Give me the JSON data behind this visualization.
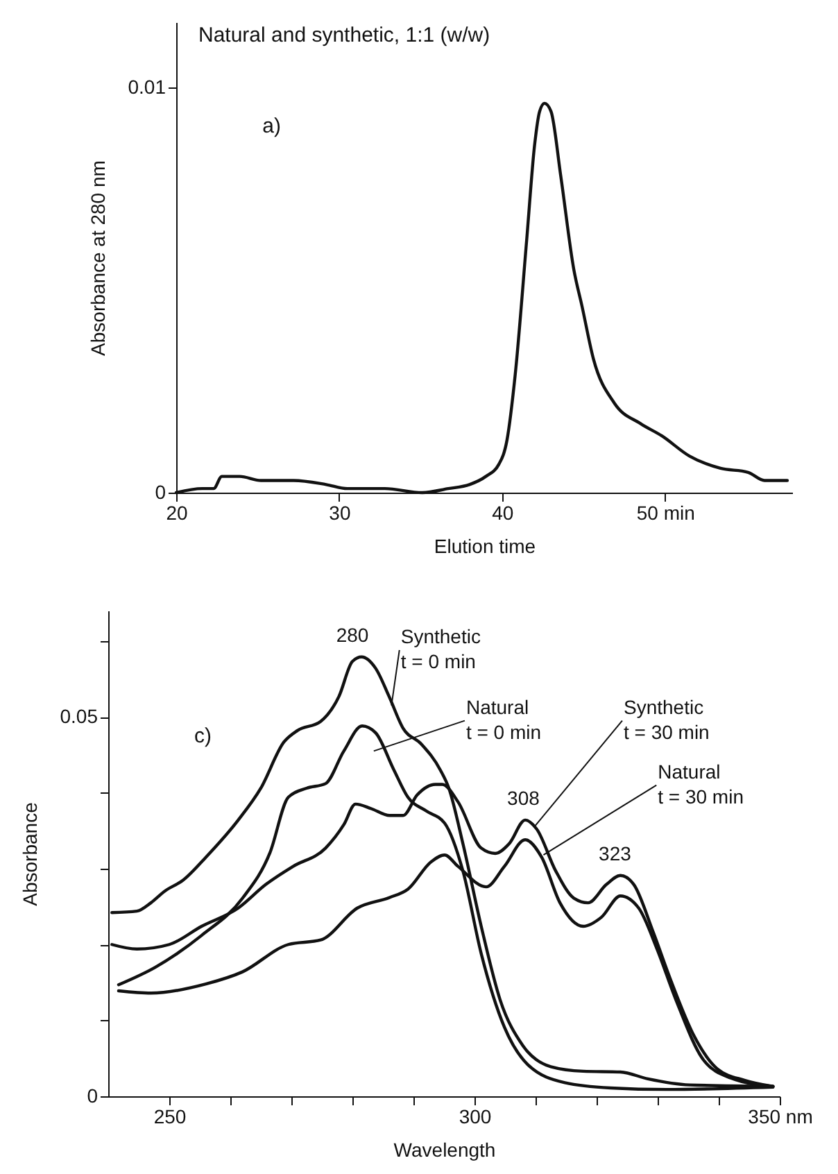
{
  "chart_data": [
    {
      "type": "line",
      "title": "Natural and synthetic, 1:1 (w/w)",
      "xlabel": "Elution time",
      "ylabel": "Absorbance at 280 nm",
      "xlim": [
        20,
        57.8
      ],
      "ylim": [
        0,
        0.0116
      ],
      "xticks": [
        20,
        30,
        40,
        {
          "value": 50,
          "label": "50 min"
        }
      ],
      "yticks": [
        0,
        0.01
      ],
      "annotations": [
        "a)"
      ],
      "grid": false,
      "series": [
        {
          "color": "#111111",
          "x": [
            20,
            21.6,
            22.3,
            22.8,
            23.3,
            23.9,
            25.2,
            27.2,
            29.2,
            30.5,
            32.8,
            35.1,
            36.7,
            38.0,
            39.0,
            39.8,
            40.3,
            40.8,
            41.5,
            42.0,
            42.3,
            42.6,
            43.0,
            43.6,
            44.4,
            44.9,
            45.6,
            46.9,
            48.5,
            49.8,
            51.5,
            53.4,
            55.1,
            56.1,
            57.5
          ],
          "values": [
            0,
            0.0001,
            0.0001,
            0.0004,
            0.0004,
            0.0004,
            0.0003,
            0.0003,
            0.0002,
            0.0001,
            0.0001,
            0,
            0.0001,
            0.0002,
            0.0004,
            0.0007,
            0.0013,
            0.0029,
            0.0062,
            0.0086,
            0.0094,
            0.0096,
            0.0094,
            0.0078,
            0.0055,
            0.0046,
            0.0033,
            0.0022,
            0.0017,
            0.0014,
            0.0009,
            0.0006,
            0.0005,
            0.0003,
            0.0003
          ]
        }
      ]
    },
    {
      "type": "line",
      "xlabel": "Wavelength",
      "ylabel": "Absorbance",
      "xlim": [
        240,
        350
      ],
      "ylim": [
        0,
        0.064
      ],
      "xticks": [
        250,
        {
          "value": 260,
          "label": null
        },
        {
          "value": 270,
          "label": null
        },
        {
          "value": 280,
          "label": null
        },
        {
          "value": 290,
          "label": null
        },
        300,
        {
          "value": 310,
          "label": null
        },
        {
          "value": 320,
          "label": null
        },
        {
          "value": 330,
          "label": null
        },
        {
          "value": 340,
          "label": null
        },
        {
          "value": 350,
          "label": "350 nm"
        }
      ],
      "yticks": [
        0,
        {
          "value": 0.01,
          "label": null
        },
        {
          "value": 0.02,
          "label": null
        },
        {
          "value": 0.03,
          "label": null
        },
        {
          "value": 0.04,
          "label": null
        },
        0.05,
        {
          "value": 0.06,
          "label": null
        }
      ],
      "annotations": [
        "c)",
        {
          "text": "280",
          "x": 280,
          "y": 0.0579
        },
        {
          "text": "308",
          "x": 308,
          "y": 0.0364
        },
        {
          "text": "323",
          "x": 323,
          "y": 0.0291
        }
      ],
      "grid": false,
      "series": [
        {
          "name": "Synthetic t = 0 min",
          "color": "#111111",
          "x": [
            240.6,
            244.7,
            247,
            249.2,
            252.3,
            256,
            261.3,
            265,
            268.8,
            271,
            274.8,
            277.8,
            280,
            281.5,
            283.8,
            286,
            288.3,
            291.3,
            294.4,
            295.8,
            298.1,
            301.1,
            304.2,
            307.9,
            312.5,
            317.8,
            323.9,
            328.4,
            335.2,
            348.9
          ],
          "values": [
            0.0242,
            0.0244,
            0.0255,
            0.027,
            0.0285,
            0.0315,
            0.0364,
            0.0406,
            0.0467,
            0.0482,
            0.0494,
            0.0527,
            0.0573,
            0.0579,
            0.0564,
            0.0527,
            0.0485,
            0.0464,
            0.043,
            0.0406,
            0.0333,
            0.0224,
            0.0127,
            0.0067,
            0.0039,
            0.0033,
            0.0032,
            0.0023,
            0.0015,
            0.0013
          ]
        },
        {
          "name": "Natural t = 0 min",
          "color": "#111111",
          "x": [
            241.7,
            247.7,
            255.3,
            262,
            266.5,
            269.5,
            272.5,
            275.6,
            278.6,
            281.6,
            283.8,
            286.8,
            289.1,
            292.1,
            295.1,
            298.1,
            301.1,
            304.9,
            308.7,
            314.8,
            322.3,
            331.4,
            348.9
          ],
          "values": [
            0.0147,
            0.017,
            0.0212,
            0.0261,
            0.0321,
            0.0394,
            0.0406,
            0.0412,
            0.0455,
            0.0488,
            0.0479,
            0.043,
            0.0394,
            0.0376,
            0.036,
            0.0297,
            0.0188,
            0.0091,
            0.0042,
            0.0018,
            0.0011,
            0.0009,
            0.0012
          ]
        },
        {
          "name": "Synthetic t = 30 min",
          "color": "#111111",
          "x": [
            240.6,
            244.7,
            250,
            255.3,
            261.3,
            265.8,
            270.3,
            275.6,
            278.6,
            280.5,
            283.1,
            286.1,
            288.3,
            290.6,
            293.6,
            294.7,
            297.3,
            301.1,
            303.4,
            305.7,
            308.3,
            310.2,
            313.3,
            316.3,
            318.6,
            321.6,
            323.9,
            326.1,
            329.2,
            332.2,
            336,
            339.8,
            344.3,
            348.9
          ],
          "values": [
            0.02,
            0.0194,
            0.02,
            0.0224,
            0.0248,
            0.0279,
            0.0303,
            0.0327,
            0.0358,
            0.0385,
            0.0379,
            0.037,
            0.037,
            0.0397,
            0.0411,
            0.0411,
            0.0388,
            0.0327,
            0.032,
            0.0333,
            0.0364,
            0.0352,
            0.0297,
            0.0261,
            0.0255,
            0.0279,
            0.0291,
            0.0279,
            0.0218,
            0.0152,
            0.0079,
            0.0036,
            0.0021,
            0.0013
          ]
        },
        {
          "name": "Natural t = 30 min",
          "color": "#111111",
          "x": [
            241.7,
            247,
            256,
            262,
            269.5,
            274.8,
            280.8,
            286.1,
            289.1,
            292.9,
            295.1,
            297.3,
            301.9,
            304.9,
            308.3,
            311,
            314,
            317.8,
            320.8,
            323.9,
            326.9,
            329.9,
            333,
            337.5,
            342,
            348.9
          ],
          "values": [
            0.0139,
            0.0136,
            0.0148,
            0.0164,
            0.02,
            0.0206,
            0.0248,
            0.0262,
            0.0273,
            0.0309,
            0.0318,
            0.0303,
            0.0276,
            0.0303,
            0.0338,
            0.0315,
            0.0255,
            0.0224,
            0.0236,
            0.0264,
            0.0248,
            0.0194,
            0.0127,
            0.0048,
            0.0024,
            0.0013
          ]
        }
      ]
    }
  ]
}
